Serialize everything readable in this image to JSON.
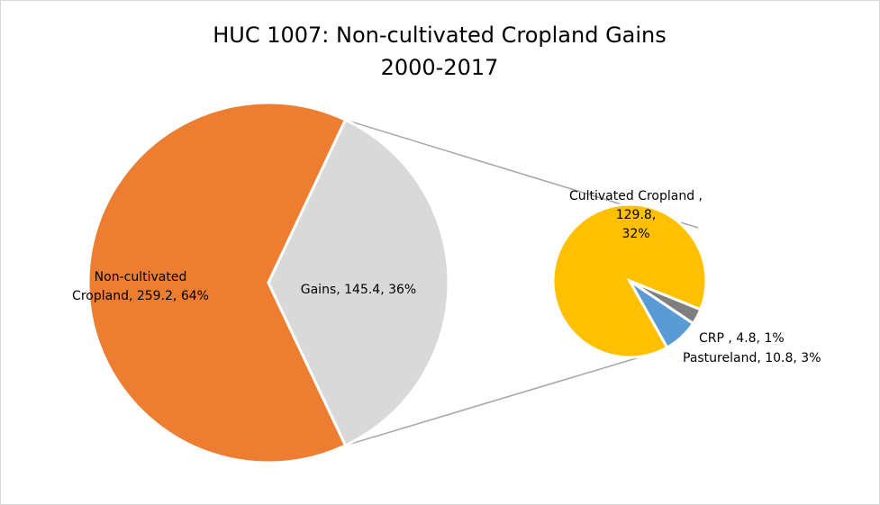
{
  "chart_data": {
    "type": "pie",
    "title": "HUC 1007: Non-cultivated Cropland Gains",
    "subtitle": "2000-2017",
    "main_pie": [
      {
        "category": "Non-cultivated Cropland",
        "value": 259.2,
        "percent": "64%",
        "color": "#ed7d31",
        "label_lines": [
          "Non-cultivated",
          "Cropland, 259.2, 64%"
        ]
      },
      {
        "category": "Gains",
        "value": 145.4,
        "percent": "36%",
        "color": "#d9d9d9",
        "label_lines": [
          "Gains, 145.4, 36%"
        ]
      }
    ],
    "secondary_pie": [
      {
        "category": "Cultivated Cropland",
        "value": 129.8,
        "percent": "32%",
        "color": "#ffc000",
        "label_lines": [
          "Cultivated Cropland ,",
          "129.8,",
          "32%"
        ]
      },
      {
        "category": "CRP",
        "value": 4.8,
        "percent": "1%",
        "color": "#7f7f7f",
        "label_lines": [
          "CRP , 4.8, 1%"
        ]
      },
      {
        "category": "Pastureland",
        "value": 10.8,
        "percent": "3%",
        "color": "#5b9bd5",
        "label_lines": [
          "Pastureland, 10.8, 3%"
        ]
      }
    ]
  }
}
